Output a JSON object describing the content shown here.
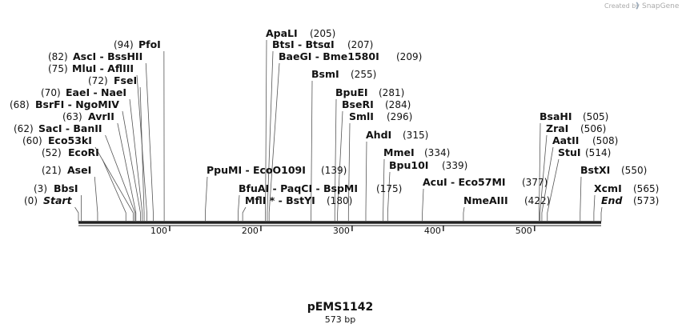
{
  "watermark": {
    "prefix": "Created by",
    "brand": "SnapGene"
  },
  "title": "pEMS1142",
  "subtitle": "573 bp",
  "map": {
    "length": 573,
    "ticks": [
      100,
      200,
      300,
      400,
      500
    ],
    "sites": [
      {
        "name": "PfoI",
        "position": 94,
        "position_label": "(94)"
      },
      {
        "name": "AscI  -  BssHII",
        "position": 82,
        "position_label": "(82)"
      },
      {
        "name": "MluI  -  AflIII",
        "position": 75,
        "position_label": "(75)"
      },
      {
        "name": "FseI",
        "position": 72,
        "position_label": "(72)"
      },
      {
        "name": "EaeI  -  NaeI",
        "position": 70,
        "position_label": "(70)"
      },
      {
        "name": "BsrFI  -  NgoMIV",
        "position": 68,
        "position_label": "(68)"
      },
      {
        "name": "AvrII",
        "position": 63,
        "position_label": "(63)"
      },
      {
        "name": "SacI  -  BanII",
        "position": 62,
        "position_label": "(62)"
      },
      {
        "name": "Eco53kI",
        "position": 60,
        "position_label": "(60)"
      },
      {
        "name": "EcoRI",
        "position": 52,
        "position_label": "(52)"
      },
      {
        "name": "AseI",
        "position": 21,
        "position_label": "(21)"
      },
      {
        "name": "BbsI",
        "position": 3,
        "position_label": "(3)"
      },
      {
        "name": "Start",
        "position": 0,
        "position_label": "(0)"
      },
      {
        "name": "ApaLI",
        "position": 205,
        "position_label": "(205)"
      },
      {
        "name": "BtsI  -  BtsαI",
        "position": 207,
        "position_label": "(207)"
      },
      {
        "name": "BaeGI  -  Bme1580I",
        "position": 209,
        "position_label": "(209)"
      },
      {
        "name": "BsmI",
        "position": 255,
        "position_label": "(255)"
      },
      {
        "name": "BpuEI",
        "position": 281,
        "position_label": "(281)"
      },
      {
        "name": "BseRI",
        "position": 284,
        "position_label": "(284)"
      },
      {
        "name": "SmlI",
        "position": 296,
        "position_label": "(296)"
      },
      {
        "name": "AhdI",
        "position": 315,
        "position_label": "(315)"
      },
      {
        "name": "MmeI",
        "position": 334,
        "position_label": "(334)"
      },
      {
        "name": "Bpu10I",
        "position": 339,
        "position_label": "(339)"
      },
      {
        "name": "PpuMI  -  EcoO109I",
        "position": 139,
        "position_label": "(139)"
      },
      {
        "name": "BfuAI  -  PaqCI  -  BspMI",
        "position": 175,
        "position_label": "(175)"
      },
      {
        "name": "MflI *  -  BstYI",
        "position": 180,
        "position_label": "(180)"
      },
      {
        "name": "AcuI  -  Eco57MI",
        "position": 377,
        "position_label": "(377)"
      },
      {
        "name": "NmeAIII",
        "position": 422,
        "position_label": "(422)"
      },
      {
        "name": "BsaHI",
        "position": 505,
        "position_label": "(505)"
      },
      {
        "name": "ZraI",
        "position": 506,
        "position_label": "(506)"
      },
      {
        "name": "AatII",
        "position": 508,
        "position_label": "(508)"
      },
      {
        "name": "StuI",
        "position": 514,
        "position_label": "(514)"
      },
      {
        "name": "BstXI",
        "position": 550,
        "position_label": "(550)"
      },
      {
        "name": "XcmI",
        "position": 565,
        "position_label": "(565)"
      },
      {
        "name": "End",
        "position": 573,
        "position_label": "(573)"
      }
    ]
  }
}
